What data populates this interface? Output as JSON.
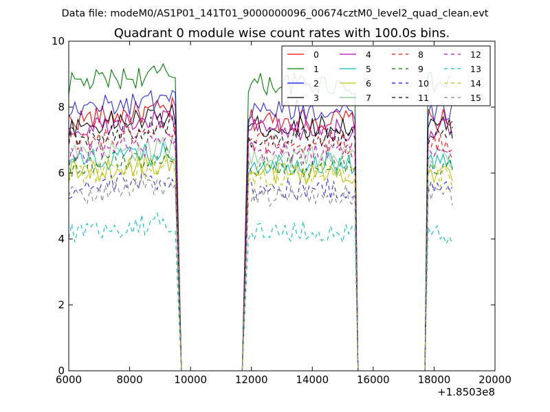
{
  "chart_data": {
    "type": "line",
    "suptitle": "Data file: modeM0/AS1P01_141T01_9000000096_00674cztM0_level2_quad_clean.evt",
    "title": "Quadrant 0 module wise count rates with 100.0s bins.",
    "xlabel": "",
    "ylabel": "",
    "x_offset_label": "+1.8503e8",
    "xlim": [
      6000,
      20000
    ],
    "ylim": [
      0,
      10
    ],
    "x_ticks": [
      6000,
      8000,
      10000,
      12000,
      14000,
      16000,
      18000,
      20000
    ],
    "x_tick_labels": [
      "6000",
      "8000",
      "10000",
      "12000",
      "14000",
      "16000",
      "18000",
      "20000"
    ],
    "y_ticks": [
      0,
      2,
      4,
      6,
      8,
      10
    ],
    "y_tick_labels": [
      "0",
      "2",
      "4",
      "6",
      "8",
      "10"
    ],
    "grid": false,
    "legend_position": "top-right",
    "legend_columns": 4,
    "observation_intervals": [
      [
        6000,
        9600
      ],
      [
        11800,
        15400
      ],
      [
        17800,
        18600
      ]
    ],
    "series": [
      {
        "name": "0",
        "level": 7.6,
        "color": "#ff0000",
        "dash": "solid"
      },
      {
        "name": "1",
        "level": 8.7,
        "color": "#008000",
        "dash": "solid"
      },
      {
        "name": "2",
        "level": 7.9,
        "color": "#0000ff",
        "dash": "solid"
      },
      {
        "name": "3",
        "level": 7.4,
        "color": "#000000",
        "dash": "solid"
      },
      {
        "name": "4",
        "level": 7.3,
        "color": "#bf00bf",
        "dash": "solid"
      },
      {
        "name": "5",
        "level": 6.3,
        "color": "#00bfbf",
        "dash": "solid"
      },
      {
        "name": "6",
        "level": 6.0,
        "color": "#bfbf00",
        "dash": "solid"
      },
      {
        "name": "7",
        "level": 6.5,
        "color": "#80c080",
        "dash": "solid"
      },
      {
        "name": "8",
        "level": 6.9,
        "color": "#ff0000",
        "dash": "dashed"
      },
      {
        "name": "9",
        "level": 6.2,
        "color": "#008000",
        "dash": "dashed"
      },
      {
        "name": "10",
        "level": 5.5,
        "color": "#0000ff",
        "dash": "dashed"
      },
      {
        "name": "11",
        "level": 7.1,
        "color": "#000000",
        "dash": "dashed"
      },
      {
        "name": "12",
        "level": 6.6,
        "color": "#bf00bf",
        "dash": "dashed"
      },
      {
        "name": "13",
        "level": 4.2,
        "color": "#00bfbf",
        "dash": "dashed"
      },
      {
        "name": "14",
        "level": 5.9,
        "color": "#bfbf00",
        "dash": "dashed"
      },
      {
        "name": "15",
        "level": 5.3,
        "color": "#808080",
        "dash": "dashed"
      }
    ]
  }
}
